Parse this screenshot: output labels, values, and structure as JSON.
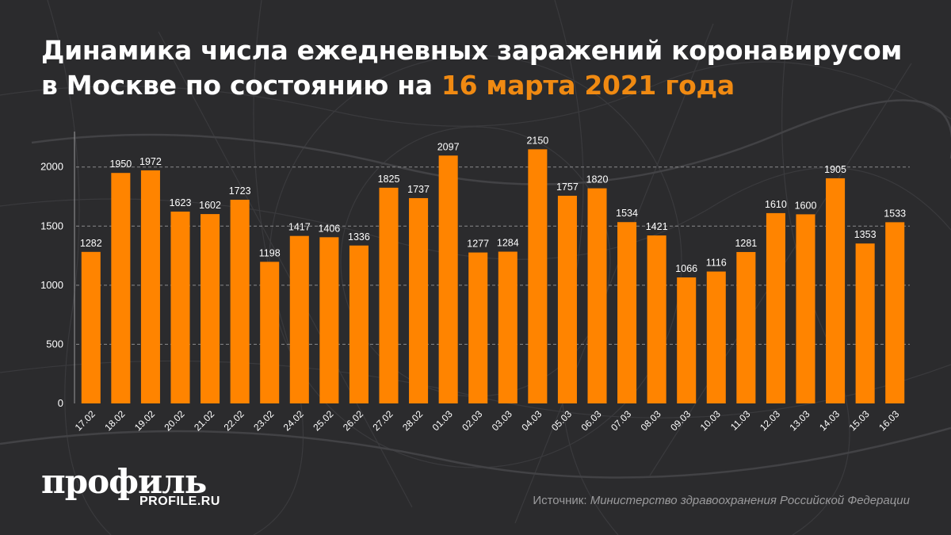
{
  "header": {
    "title_main": "Динамика числа ежедневных заражений коронавирусом в Москве по состоянию на",
    "title_accent": "16 марта 2021 года"
  },
  "footer": {
    "logo": "профиль",
    "logo_sub": "PROFILE.RU",
    "source_label": "Источник:",
    "source_name": "Министерство здравоохранения Российской Федерации"
  },
  "colors": {
    "bar": "#ff8400",
    "accent": "#f08a12",
    "background": "#2b2b2d",
    "grid": "#8a8a8c"
  },
  "chart_data": {
    "type": "bar",
    "title": "Динамика числа ежедневных заражений коронавирусом в Москве по состоянию на 16 марта 2021 года",
    "xlabel": "",
    "ylabel": "",
    "ylim": [
      0,
      2300
    ],
    "yticks": [
      0,
      500,
      1000,
      1500,
      2000
    ],
    "grid": true,
    "categories": [
      "17.02",
      "18.02",
      "19.02",
      "20.02",
      "21.02",
      "22.02",
      "23.02",
      "24.02",
      "25.02",
      "26.02",
      "27.02",
      "28.02",
      "01.03",
      "02.03",
      "03.03",
      "04.03",
      "05.03",
      "06.03",
      "07.03",
      "08.03",
      "09.03",
      "10.03",
      "11.03",
      "12.03",
      "13.03",
      "14.03",
      "15.03",
      "16.03"
    ],
    "values": [
      1282,
      1950,
      1972,
      1623,
      1602,
      1723,
      1198,
      1417,
      1406,
      1336,
      1825,
      1737,
      2097,
      1277,
      1284,
      2150,
      1757,
      1820,
      1534,
      1421,
      1066,
      1116,
      1281,
      1610,
      1600,
      1905,
      1353,
      1533
    ]
  }
}
